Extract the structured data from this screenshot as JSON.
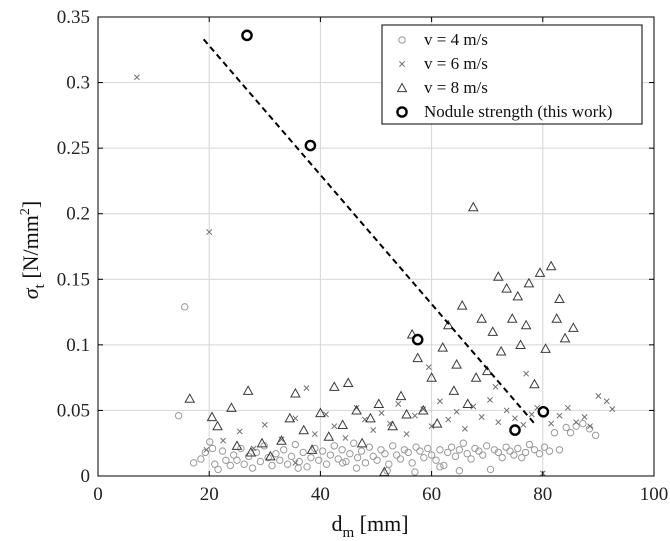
{
  "chart_data": {
    "type": "scatter",
    "title": "",
    "xlabel": "d_m [mm]",
    "xlabel_main": "d",
    "xlabel_sub": "m",
    "xlabel_unit": " [mm]",
    "ylabel": "σ_t [N/mm²]",
    "ylabel_main": "σ",
    "ylabel_sub": "t",
    "ylabel_unit_a": " [N/mm",
    "ylabel_unit_sup": "2",
    "ylabel_unit_b": "]",
    "xlim": [
      0,
      100
    ],
    "ylim": [
      0,
      0.35
    ],
    "xticks": [
      0,
      20,
      40,
      60,
      80,
      100
    ],
    "xtick_labels": [
      "0",
      "20",
      "40",
      "60",
      "80",
      "100"
    ],
    "yticks": [
      0,
      0.05,
      0.1,
      0.15,
      0.2,
      0.25,
      0.3,
      0.35
    ],
    "ytick_labels": [
      "0",
      "0.05",
      "0.1",
      "0.15",
      "0.2",
      "0.25",
      "0.3",
      "0.35"
    ],
    "grid": true,
    "legend_position": "top-right",
    "series": [
      {
        "name": "v = 4 m/s",
        "marker": "circle",
        "color": "#9a9a9a",
        "points": [
          [
            14.5,
            0.046
          ],
          [
            15.6,
            0.129
          ],
          [
            17.2,
            0.01
          ],
          [
            18.5,
            0.013
          ],
          [
            19.3,
            0.018
          ],
          [
            20.1,
            0.026
          ],
          [
            20.6,
            0.021
          ],
          [
            21.0,
            0.009
          ],
          [
            21.6,
            0.005
          ],
          [
            22.4,
            0.019
          ],
          [
            23.0,
            0.012
          ],
          [
            23.8,
            0.008
          ],
          [
            24.4,
            0.016
          ],
          [
            25.0,
            0.012
          ],
          [
            25.7,
            0.021
          ],
          [
            26.3,
            0.009
          ],
          [
            27.1,
            0.015
          ],
          [
            27.8,
            0.006
          ],
          [
            28.5,
            0.018
          ],
          [
            29.2,
            0.011
          ],
          [
            29.9,
            0.023
          ],
          [
            30.6,
            0.014
          ],
          [
            31.3,
            0.008
          ],
          [
            32.0,
            0.017
          ],
          [
            32.7,
            0.012
          ],
          [
            33.4,
            0.02
          ],
          [
            34.1,
            0.009
          ],
          [
            34.8,
            0.015
          ],
          [
            35.5,
            0.024
          ],
          [
            36.2,
            0.011
          ],
          [
            36.9,
            0.018
          ],
          [
            37.6,
            0.007
          ],
          [
            38.3,
            0.014
          ],
          [
            39.0,
            0.021
          ],
          [
            39.7,
            0.012
          ],
          [
            40.4,
            0.019
          ],
          [
            41.1,
            0.009
          ],
          [
            41.8,
            0.016
          ],
          [
            42.5,
            0.023
          ],
          [
            43.2,
            0.013
          ],
          [
            43.9,
            0.02
          ],
          [
            44.6,
            0.011
          ],
          [
            45.3,
            0.017
          ],
          [
            46.0,
            0.025
          ],
          [
            46.7,
            0.014
          ],
          [
            47.4,
            0.019
          ],
          [
            48.1,
            0.01
          ],
          [
            48.8,
            0.022
          ],
          [
            49.5,
            0.015
          ],
          [
            50.2,
            0.012
          ],
          [
            50.9,
            0.02
          ],
          [
            51.6,
            0.017
          ],
          [
            52.3,
            0.009
          ],
          [
            53.0,
            0.023
          ],
          [
            53.7,
            0.016
          ],
          [
            54.4,
            0.013
          ],
          [
            55.1,
            0.02
          ],
          [
            55.8,
            0.018
          ],
          [
            56.5,
            0.01
          ],
          [
            57.2,
            0.022
          ],
          [
            57.9,
            0.019
          ],
          [
            58.6,
            0.014
          ],
          [
            59.3,
            0.021
          ],
          [
            60.0,
            0.016
          ],
          [
            60.8,
            0.012
          ],
          [
            61.5,
            0.02
          ],
          [
            62.2,
            0.008
          ],
          [
            62.9,
            0.018
          ],
          [
            63.6,
            0.022
          ],
          [
            64.3,
            0.015
          ],
          [
            65.0,
            0.02
          ],
          [
            65.7,
            0.025
          ],
          [
            66.4,
            0.017
          ],
          [
            67.1,
            0.013
          ],
          [
            67.8,
            0.021
          ],
          [
            68.5,
            0.019
          ],
          [
            69.2,
            0.016
          ],
          [
            69.9,
            0.023
          ],
          [
            70.6,
            0.005
          ],
          [
            71.3,
            0.02
          ],
          [
            72.0,
            0.018
          ],
          [
            72.7,
            0.014
          ],
          [
            73.4,
            0.022
          ],
          [
            74.1,
            0.019
          ],
          [
            74.8,
            0.016
          ],
          [
            75.5,
            0.021
          ],
          [
            76.2,
            0.014
          ],
          [
            76.9,
            0.018
          ],
          [
            77.6,
            0.024
          ],
          [
            78.5,
            0.02
          ],
          [
            79.4,
            0.017
          ],
          [
            80.3,
            0.022
          ],
          [
            81.2,
            0.019
          ],
          [
            82.1,
            0.033
          ],
          [
            83.0,
            0.02
          ],
          [
            84.2,
            0.037
          ],
          [
            85.0,
            0.033
          ],
          [
            86.0,
            0.038
          ],
          [
            87.2,
            0.04
          ],
          [
            88.4,
            0.036
          ],
          [
            89.5,
            0.031
          ],
          [
            44.0,
            0.01
          ],
          [
            46.5,
            0.006
          ],
          [
            52.0,
            0.004
          ],
          [
            57.0,
            0.003
          ],
          [
            61.5,
            0.007
          ],
          [
            65.0,
            0.004
          ],
          [
            36.0,
            0.006
          ]
        ]
      },
      {
        "name": "v = 6 m/s",
        "marker": "x",
        "color": "#707070",
        "points": [
          [
            7.0,
            0.304
          ],
          [
            20.0,
            0.186
          ],
          [
            19.5,
            0.02
          ],
          [
            22.5,
            0.027
          ],
          [
            25.5,
            0.034
          ],
          [
            28.0,
            0.021
          ],
          [
            30.0,
            0.039
          ],
          [
            33.0,
            0.028
          ],
          [
            35.5,
            0.044
          ],
          [
            37.5,
            0.067
          ],
          [
            39.0,
            0.032
          ],
          [
            41.0,
            0.047
          ],
          [
            42.5,
            0.038
          ],
          [
            44.5,
            0.029
          ],
          [
            46.5,
            0.052
          ],
          [
            48.0,
            0.043
          ],
          [
            49.5,
            0.035
          ],
          [
            51.0,
            0.048
          ],
          [
            52.5,
            0.04
          ],
          [
            54.0,
            0.055
          ],
          [
            55.5,
            0.032
          ],
          [
            57.0,
            0.046
          ],
          [
            58.5,
            0.051
          ],
          [
            60.0,
            0.038
          ],
          [
            61.5,
            0.057
          ],
          [
            63.0,
            0.043
          ],
          [
            64.5,
            0.049
          ],
          [
            66.0,
            0.036
          ],
          [
            67.5,
            0.053
          ],
          [
            69.0,
            0.045
          ],
          [
            70.5,
            0.058
          ],
          [
            72.0,
            0.041
          ],
          [
            73.5,
            0.05
          ],
          [
            75.0,
            0.044
          ],
          [
            76.5,
            0.039
          ],
          [
            78.0,
            0.047
          ],
          [
            79.0,
            0.052
          ],
          [
            80.0,
            0.002
          ],
          [
            81.5,
            0.04
          ],
          [
            83.0,
            0.046
          ],
          [
            84.5,
            0.052
          ],
          [
            86.0,
            0.041
          ],
          [
            87.5,
            0.045
          ],
          [
            88.5,
            0.038
          ],
          [
            90.0,
            0.061
          ],
          [
            91.5,
            0.057
          ],
          [
            92.5,
            0.051
          ],
          [
            77.0,
            0.078
          ],
          [
            71.5,
            0.068
          ],
          [
            59.5,
            0.083
          ],
          [
            35.5,
            0.01
          ]
        ]
      },
      {
        "name": "v = 8 m/s",
        "marker": "triangle",
        "color": "#3a3a3a",
        "points": [
          [
            16.5,
            0.059
          ],
          [
            20.5,
            0.045
          ],
          [
            21.5,
            0.038
          ],
          [
            24.0,
            0.052
          ],
          [
            25.0,
            0.023
          ],
          [
            27.0,
            0.065
          ],
          [
            27.5,
            0.018
          ],
          [
            29.5,
            0.025
          ],
          [
            31.0,
            0.015
          ],
          [
            33.0,
            0.027
          ],
          [
            34.5,
            0.044
          ],
          [
            35.5,
            0.063
          ],
          [
            37.0,
            0.035
          ],
          [
            38.5,
            0.02
          ],
          [
            40.0,
            0.048
          ],
          [
            41.5,
            0.03
          ],
          [
            42.5,
            0.068
          ],
          [
            44.0,
            0.039
          ],
          [
            45.0,
            0.071
          ],
          [
            46.5,
            0.05
          ],
          [
            47.5,
            0.025
          ],
          [
            49.0,
            0.044
          ],
          [
            50.5,
            0.055
          ],
          [
            51.5,
            0.003
          ],
          [
            53.0,
            0.038
          ],
          [
            54.5,
            0.061
          ],
          [
            55.5,
            0.047
          ],
          [
            56.5,
            0.108
          ],
          [
            57.5,
            0.09
          ],
          [
            58.5,
            0.05
          ],
          [
            60.0,
            0.075
          ],
          [
            61.0,
            0.04
          ],
          [
            62.0,
            0.098
          ],
          [
            63.0,
            0.115
          ],
          [
            64.0,
            0.065
          ],
          [
            64.5,
            0.085
          ],
          [
            65.5,
            0.13
          ],
          [
            66.5,
            0.055
          ],
          [
            67.5,
            0.205
          ],
          [
            68.0,
            0.075
          ],
          [
            69.0,
            0.12
          ],
          [
            70.0,
            0.08
          ],
          [
            71.0,
            0.11
          ],
          [
            72.0,
            0.152
          ],
          [
            72.5,
            0.095
          ],
          [
            73.5,
            0.143
          ],
          [
            74.5,
            0.12
          ],
          [
            75.5,
            0.137
          ],
          [
            76.0,
            0.1
          ],
          [
            77.0,
            0.115
          ],
          [
            77.5,
            0.147
          ],
          [
            78.5,
            0.07
          ],
          [
            79.5,
            0.155
          ],
          [
            80.5,
            0.097
          ],
          [
            81.5,
            0.16
          ],
          [
            82.5,
            0.12
          ],
          [
            83.0,
            0.135
          ],
          [
            84.0,
            0.105
          ],
          [
            85.5,
            0.113
          ]
        ]
      },
      {
        "name": "Nodule strength (this work)",
        "marker": "bold-circle",
        "color": "#000000",
        "points": [
          [
            26.8,
            0.336
          ],
          [
            38.2,
            0.252
          ],
          [
            57.5,
            0.104
          ],
          [
            75.0,
            0.035
          ],
          [
            80.1,
            0.049
          ]
        ]
      }
    ],
    "trend_line": {
      "style": "dashed",
      "x": [
        19.0,
        78.5
      ],
      "y": [
        0.333,
        0.04
      ]
    }
  }
}
